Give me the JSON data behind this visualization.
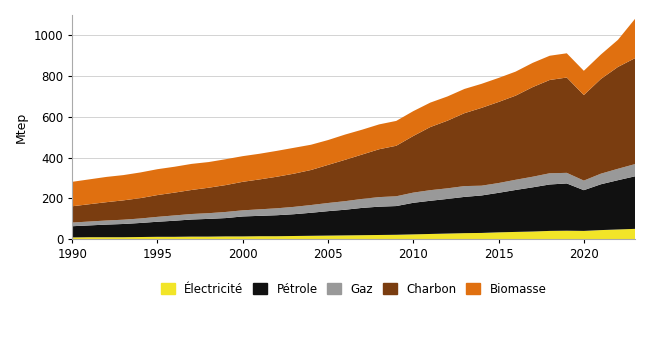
{
  "years": [
    1990,
    1991,
    1992,
    1993,
    1994,
    1995,
    1996,
    1997,
    1998,
    1999,
    2000,
    2001,
    2002,
    2003,
    2004,
    2005,
    2006,
    2007,
    2008,
    2009,
    2010,
    2011,
    2012,
    2013,
    2014,
    2015,
    2016,
    2017,
    2018,
    2019,
    2020,
    2021,
    2022,
    2023
  ],
  "electricite": [
    8,
    9,
    9,
    9,
    10,
    11,
    11,
    12,
    12,
    13,
    13,
    14,
    14,
    15,
    16,
    17,
    18,
    19,
    20,
    21,
    23,
    25,
    27,
    29,
    30,
    33,
    35,
    37,
    40,
    41,
    40,
    44,
    47,
    50
  ],
  "petrole": [
    55,
    58,
    62,
    65,
    69,
    74,
    79,
    84,
    87,
    90,
    98,
    100,
    103,
    107,
    113,
    120,
    126,
    134,
    139,
    141,
    155,
    163,
    170,
    178,
    184,
    194,
    206,
    217,
    228,
    232,
    200,
    225,
    242,
    258
  ],
  "gaz": [
    18,
    19,
    20,
    21,
    22,
    24,
    26,
    27,
    28,
    30,
    30,
    32,
    34,
    36,
    38,
    40,
    42,
    44,
    47,
    48,
    50,
    52,
    52,
    53,
    48,
    48,
    50,
    52,
    55,
    52,
    47,
    52,
    56,
    60
  ],
  "charbon": [
    80,
    85,
    90,
    95,
    100,
    107,
    112,
    118,
    125,
    132,
    140,
    147,
    155,
    163,
    172,
    187,
    203,
    218,
    235,
    248,
    278,
    310,
    332,
    358,
    382,
    398,
    413,
    440,
    458,
    468,
    420,
    465,
    500,
    520
  ],
  "biomasse": [
    120,
    122,
    124,
    124,
    126,
    127,
    127,
    128,
    126,
    127,
    126,
    126,
    127,
    127,
    124,
    122,
    124,
    122,
    122,
    122,
    122,
    120,
    119,
    119,
    118,
    118,
    118,
    119,
    119,
    119,
    119,
    120,
    133,
    193
  ],
  "colors": {
    "electricite": "#f2e528",
    "petrole": "#111111",
    "gaz": "#999999",
    "charbon": "#7a3d10",
    "biomasse": "#e07010"
  },
  "labels": [
    "Électricité",
    "Pétrole",
    "Gaz",
    "Charbon",
    "Biomasse"
  ],
  "ylabel": "Mtep",
  "xlim": [
    1990,
    2023
  ],
  "ylim": [
    0,
    1100
  ],
  "yticks": [
    0,
    200,
    400,
    600,
    800,
    1000
  ],
  "xticks": [
    1990,
    1995,
    2000,
    2005,
    2010,
    2015,
    2020
  ]
}
